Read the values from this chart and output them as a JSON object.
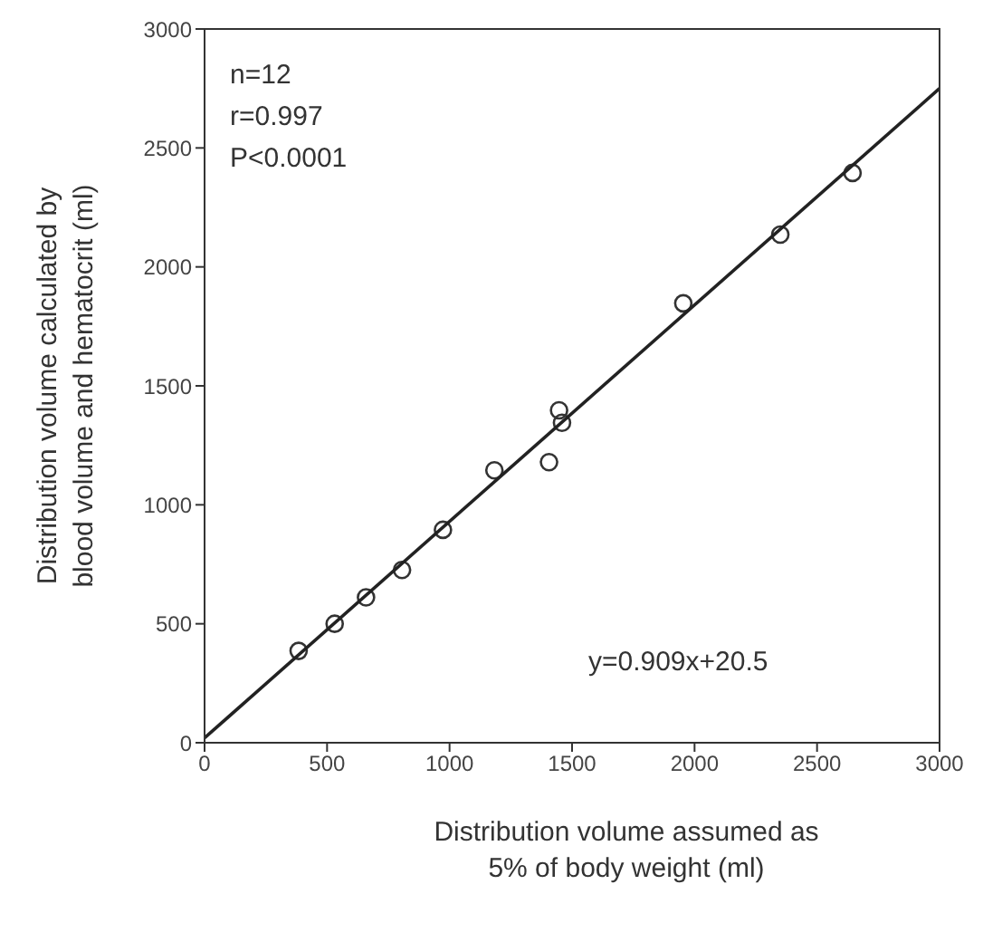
{
  "chart_data": {
    "type": "scatter",
    "xlabel": "Distribution volume assumed as\n5% of body weight (ml)",
    "ylabel": "Distribution volume calculated by\nblood volume and hematocrit (ml)",
    "annotations": [
      "n=12",
      "r=0.997",
      "P<0.0001",
      "y=0.909x+20.5"
    ],
    "xlim": [
      0,
      3000
    ],
    "xticks": [
      0,
      500,
      1000,
      1500,
      2000,
      2500,
      3000
    ],
    "ylim": [
      0,
      3000
    ],
    "yticks": [
      0,
      500,
      1000,
      1500,
      2000,
      2500,
      3000
    ],
    "grid": false,
    "legend": false,
    "marker": "circle",
    "series": [
      {
        "color": "#333333",
        "x": [
          384,
          531,
          659,
          806,
          973,
          1183,
          1406,
          1447,
          1459,
          1954,
          2350,
          2645
        ],
        "values": [
          386,
          500,
          611,
          726,
          895,
          1145,
          1179,
          1397,
          1345,
          1847,
          2136,
          2395
        ]
      },
      {
        "type": "line",
        "color": "#222222",
        "x": [
          0,
          3000
        ],
        "values": [
          20,
          2750
        ],
        "marker": "none",
        "line_style": "solid"
      }
    ]
  }
}
